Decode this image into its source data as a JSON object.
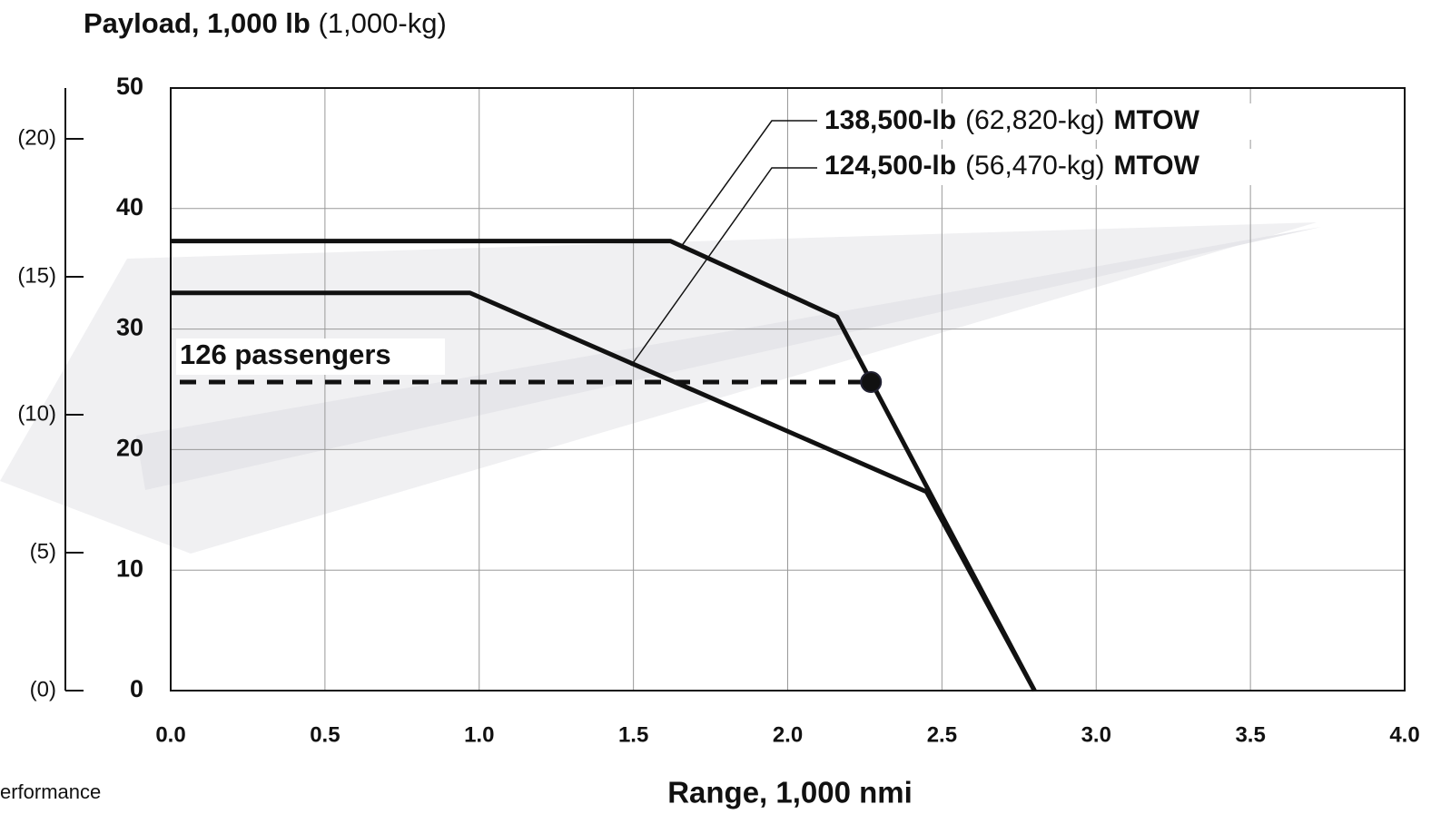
{
  "chart_data": {
    "type": "line",
    "title": {
      "bold": "Payload, 1,000 lb",
      "normal": "(1,000-kg)"
    },
    "xlabel": "Range, 1,000 nmi",
    "footnote": "erformance",
    "xlim": [
      0,
      4
    ],
    "ylim": [
      0,
      50
    ],
    "y2lim": [
      0,
      21.84
    ],
    "xticks": [
      {
        "value": 0,
        "label": "0.0"
      },
      {
        "value": 0.5,
        "label": "0.5"
      },
      {
        "value": 1,
        "label": "1.0"
      },
      {
        "value": 1.5,
        "label": "1.5"
      },
      {
        "value": 2,
        "label": "2.0"
      },
      {
        "value": 2.5,
        "label": "2.5"
      },
      {
        "value": 3,
        "label": "3.0"
      },
      {
        "value": 3.5,
        "label": "3.5"
      },
      {
        "value": 4,
        "label": "4.0"
      }
    ],
    "yticks": [
      0,
      10,
      20,
      30,
      40,
      50
    ],
    "y2ticks": [
      {
        "value": 0,
        "label": "(0)"
      },
      {
        "value": 5,
        "label": "(5)"
      },
      {
        "value": 10,
        "label": "(10)"
      },
      {
        "value": 15,
        "label": "(15)"
      },
      {
        "value": 20,
        "label": "(20)"
      }
    ],
    "grid": true,
    "series": [
      {
        "name": "138,500-lb",
        "color": "#111111",
        "x": [
          0,
          1.62,
          2.16,
          2.8
        ],
        "values": [
          37.3,
          37.3,
          31.0,
          0
        ]
      },
      {
        "name": "124,500-lb",
        "color": "#111111",
        "x": [
          0,
          0.97,
          2.45,
          2.8
        ],
        "values": [
          33.0,
          33.0,
          16.5,
          0
        ]
      }
    ],
    "annotations": [
      {
        "parts": [
          "138,500-lb",
          "(62,820-kg)",
          "MTOW"
        ]
      },
      {
        "parts": [
          "124,500-lb",
          "(56,470-kg)",
          "MTOW"
        ]
      }
    ],
    "reference": {
      "label": "126 passengers",
      "x": 2.27,
      "value": 25.6
    }
  }
}
